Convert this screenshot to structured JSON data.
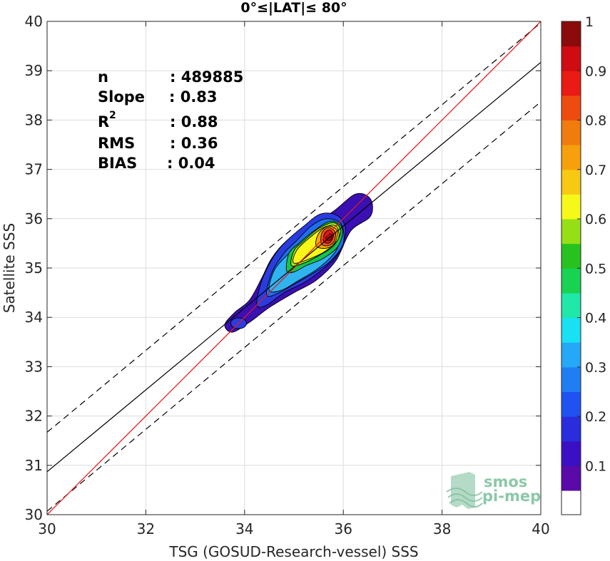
{
  "chart_data": {
    "type": "scatter",
    "title": "0°≤|LAT|≤ 80°",
    "xlabel": "TSG (GOSUD-Research-vessel) SSS",
    "ylabel": "Satellite SSS",
    "xlim": [
      30,
      40
    ],
    "ylim": [
      30,
      40
    ],
    "xticks": [
      "30",
      "32",
      "34",
      "36",
      "38",
      "40"
    ],
    "yticks": [
      "30",
      "31",
      "32",
      "33",
      "34",
      "35",
      "36",
      "37",
      "38",
      "39",
      "40"
    ],
    "grid": true,
    "stats": [
      {
        "label": "n",
        "value": ": 489885"
      },
      {
        "label": "Slope",
        "value": ": 0.83"
      },
      {
        "label": "R",
        "sup": "2",
        "value": ": 0.88"
      },
      {
        "label": "RMS",
        "value": ": 0.36"
      },
      {
        "label": "BIAS",
        "value": ": 0.04"
      }
    ],
    "lines": {
      "identity": {
        "slope": 1.0,
        "intercept": 0.0,
        "color": "#e31a1c"
      },
      "regression": {
        "x": [
          30,
          40
        ],
        "y": [
          30.87,
          39.17
        ],
        "color": "#000000"
      },
      "upper_bound": {
        "x": [
          30,
          40
        ],
        "y": [
          31.67,
          39.97
        ],
        "color": "#000000",
        "dash": true
      },
      "lower_bound": {
        "x": [
          30,
          40
        ],
        "y": [
          30.07,
          38.37
        ],
        "color": "#000000",
        "dash": true
      }
    },
    "density_contours": [
      {
        "level": 0.05,
        "color": "#3a0fb3",
        "polygon": [
          [
            33.75,
            33.7
          ],
          [
            33.6,
            33.85
          ],
          [
            33.8,
            34.1
          ],
          [
            34.1,
            34.35
          ],
          [
            34.35,
            34.8
          ],
          [
            34.55,
            35.2
          ],
          [
            34.85,
            35.55
          ],
          [
            35.3,
            35.85
          ],
          [
            35.8,
            36.15
          ],
          [
            36.25,
            36.5
          ],
          [
            36.55,
            36.4
          ],
          [
            36.55,
            36.05
          ],
          [
            36.15,
            35.75
          ],
          [
            35.85,
            35.15
          ],
          [
            35.45,
            34.75
          ],
          [
            35.0,
            34.5
          ],
          [
            34.5,
            34.2
          ],
          [
            34.1,
            33.9
          ]
        ]
      },
      {
        "level": 0.1,
        "color": "#2a3ce0",
        "polygon": [
          [
            34.25,
            34.25
          ],
          [
            34.35,
            34.75
          ],
          [
            34.6,
            35.25
          ],
          [
            34.85,
            35.55
          ],
          [
            35.2,
            35.85
          ],
          [
            35.55,
            36.1
          ],
          [
            35.9,
            36.05
          ],
          [
            36.05,
            35.75
          ],
          [
            35.9,
            35.3
          ],
          [
            35.55,
            34.95
          ],
          [
            35.2,
            34.7
          ],
          [
            34.8,
            34.5
          ],
          [
            34.45,
            34.25
          ]
        ]
      },
      {
        "level": 0.2,
        "color": "#1f6ff2",
        "polygon": [
          [
            34.45,
            34.45
          ],
          [
            34.55,
            34.9
          ],
          [
            34.8,
            35.3
          ],
          [
            35.05,
            35.55
          ],
          [
            35.35,
            35.85
          ],
          [
            35.65,
            36.0
          ],
          [
            35.95,
            35.9
          ],
          [
            36.0,
            35.5
          ],
          [
            35.75,
            35.15
          ],
          [
            35.4,
            34.9
          ],
          [
            35.05,
            34.7
          ],
          [
            34.7,
            34.5
          ]
        ]
      },
      {
        "level": 0.3,
        "color": "#2fb4f0",
        "polygon": [
          [
            34.5,
            34.55
          ],
          [
            34.6,
            34.95
          ],
          [
            34.85,
            35.25
          ],
          [
            35.1,
            35.45
          ],
          [
            35.4,
            35.7
          ],
          [
            35.7,
            35.9
          ],
          [
            35.95,
            35.75
          ],
          [
            35.85,
            35.35
          ],
          [
            35.5,
            35.0
          ],
          [
            35.1,
            34.75
          ],
          [
            34.75,
            34.55
          ]
        ]
      },
      {
        "level": 0.5,
        "color": "#15c44a",
        "polygon": [
          [
            34.85,
            34.95
          ],
          [
            34.9,
            35.3
          ],
          [
            35.1,
            35.5
          ],
          [
            35.4,
            35.75
          ],
          [
            35.75,
            35.95
          ],
          [
            35.98,
            35.8
          ],
          [
            35.9,
            35.45
          ],
          [
            35.6,
            35.2
          ],
          [
            35.25,
            35.05
          ],
          [
            35.0,
            34.92
          ]
        ]
      },
      {
        "level": 0.6,
        "color": "#9be01b",
        "polygon": [
          [
            34.95,
            35.05
          ],
          [
            35.0,
            35.35
          ],
          [
            35.2,
            35.55
          ],
          [
            35.5,
            35.8
          ],
          [
            35.8,
            35.92
          ],
          [
            35.95,
            35.75
          ],
          [
            35.8,
            35.45
          ],
          [
            35.5,
            35.25
          ],
          [
            35.2,
            35.1
          ]
        ]
      },
      {
        "level": 0.65,
        "color": "#f9f619",
        "polygon": [
          [
            35.0,
            35.1
          ],
          [
            35.05,
            35.35
          ],
          [
            35.3,
            35.6
          ],
          [
            35.6,
            35.82
          ],
          [
            35.85,
            35.85
          ],
          [
            35.9,
            35.6
          ],
          [
            35.65,
            35.35
          ],
          [
            35.35,
            35.2
          ]
        ]
      },
      {
        "level": 0.7,
        "color": "#f6a80d",
        "polygon": [
          [
            35.45,
            35.45
          ],
          [
            35.5,
            35.7
          ],
          [
            35.7,
            35.85
          ],
          [
            35.88,
            35.75
          ],
          [
            35.82,
            35.5
          ],
          [
            35.65,
            35.4
          ]
        ]
      },
      {
        "level": 0.8,
        "color": "#f05a14",
        "polygon": [
          [
            35.55,
            35.5
          ],
          [
            35.57,
            35.72
          ],
          [
            35.7,
            35.82
          ],
          [
            35.84,
            35.72
          ],
          [
            35.8,
            35.52
          ],
          [
            35.67,
            35.45
          ]
        ]
      },
      {
        "level": 0.9,
        "color": "#e0141c",
        "polygon": [
          [
            35.6,
            35.55
          ],
          [
            35.62,
            35.7
          ],
          [
            35.72,
            35.77
          ],
          [
            35.8,
            35.68
          ],
          [
            35.76,
            35.55
          ],
          [
            35.68,
            35.5
          ]
        ]
      },
      {
        "level": 0.95,
        "color": "#a40e12",
        "polygon": [
          [
            35.65,
            35.58
          ],
          [
            35.67,
            35.67
          ],
          [
            35.73,
            35.7
          ],
          [
            35.77,
            35.63
          ],
          [
            35.73,
            35.56
          ]
        ]
      }
    ],
    "secondary_blobs": [
      {
        "cx": 33.88,
        "cy": 33.88,
        "rx": 0.16,
        "ry": 0.11,
        "color": "#2a3ce0"
      },
      {
        "cx": 34.45,
        "cy": 34.45,
        "rx": 0.12,
        "ry": 0.12,
        "color": "#2fb4f0"
      }
    ],
    "colorbar": {
      "min": 0.05,
      "max": 1.0,
      "ticks": [
        "0.1",
        "0.2",
        "0.3",
        "0.4",
        "0.5",
        "0.6",
        "0.7",
        "0.8",
        "0.9",
        "1"
      ],
      "colors": [
        "#5a0aa8",
        "#3b10c4",
        "#2a2ddc",
        "#1f52f0",
        "#1f7ff2",
        "#25a8f5",
        "#19e0f3",
        "#1fe8a8",
        "#18d252",
        "#27c21f",
        "#96df17",
        "#f6f81a",
        "#f7c912",
        "#f5a00c",
        "#f17c0e",
        "#ee4c0f",
        "#ea1a14",
        "#ce0c12",
        "#8b0a0a"
      ]
    },
    "logo": {
      "line1": "smos",
      "line2": "pi-mep"
    }
  }
}
